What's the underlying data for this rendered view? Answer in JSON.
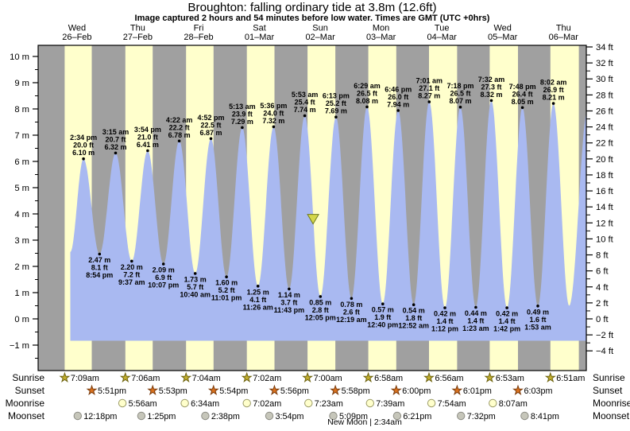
{
  "title": "Broughton: falling  ordinary tide at 3.8m (12.6ft)",
  "subtitle": "Image captured 2 hours and 54 minutes before low water. Times are GMT (UTC +0hrs)",
  "days": [
    {
      "dow": "Wed",
      "date": "26–Feb"
    },
    {
      "dow": "Thu",
      "date": "27–Feb"
    },
    {
      "dow": "Fri",
      "date": "28–Feb"
    },
    {
      "dow": "Sat",
      "date": "01–Mar"
    },
    {
      "dow": "Sun",
      "date": "02–Mar"
    },
    {
      "dow": "Mon",
      "date": "03–Mar"
    },
    {
      "dow": "Tue",
      "date": "04–Mar"
    },
    {
      "dow": "Wed",
      "date": "05–Mar"
    },
    {
      "dow": "Thu",
      "date": "06–Mar"
    }
  ],
  "chart_data": {
    "type": "area",
    "title": "Broughton: falling  ordinary tide at 3.8m (12.6ft)",
    "categories": [
      "Wed 26–Feb",
      "Thu 27–Feb",
      "Fri 28–Feb",
      "Sat 01–Mar",
      "Sun 02–Mar",
      "Mon 03–Mar",
      "Tue 04–Mar",
      "Wed 05–Mar",
      "Thu 06–Mar"
    ],
    "ylabel_left": "m",
    "ylabel_right": "ft",
    "ylim_m": [
      -1.95,
      10.5
    ],
    "grid": false,
    "left_ticks": [
      {
        "v": 10,
        "t": "10 m"
      },
      {
        "v": 9,
        "t": "9 m"
      },
      {
        "v": 8,
        "t": "8 m"
      },
      {
        "v": 7,
        "t": "7 m"
      },
      {
        "v": 6,
        "t": "6 m"
      },
      {
        "v": 5,
        "t": "5 m"
      },
      {
        "v": 4,
        "t": "4 m"
      },
      {
        "v": 3,
        "t": "3 m"
      },
      {
        "v": 2,
        "t": "2 m"
      },
      {
        "v": 1,
        "t": "1 m"
      },
      {
        "v": 0,
        "t": "0 m"
      },
      {
        "v": -1,
        "t": "−1 m"
      }
    ],
    "right_ticks": [
      {
        "v": 34,
        "t": "34 ft"
      },
      {
        "v": 32,
        "t": "32 ft"
      },
      {
        "v": 30,
        "t": "30 ft"
      },
      {
        "v": 28,
        "t": "28 ft"
      },
      {
        "v": 26,
        "t": "26 ft"
      },
      {
        "v": 24,
        "t": "24 ft"
      },
      {
        "v": 22,
        "t": "22 ft"
      },
      {
        "v": 20,
        "t": "20 ft"
      },
      {
        "v": 18,
        "t": "18 ft"
      },
      {
        "v": 16,
        "t": "16 ft"
      },
      {
        "v": 14,
        "t": "14 ft"
      },
      {
        "v": 12,
        "t": "12 ft"
      },
      {
        "v": 10,
        "t": "10 ft"
      },
      {
        "v": 8,
        "t": "8 ft"
      },
      {
        "v": 6,
        "t": "6 ft"
      },
      {
        "v": 4,
        "t": "4 ft"
      },
      {
        "v": 2,
        "t": "2 ft"
      },
      {
        "v": 0,
        "t": "0 ft"
      },
      {
        "v": -2,
        "t": "−2 ft"
      },
      {
        "v": -4,
        "t": "−4 ft"
      }
    ],
    "tide_events": [
      {
        "day": 0,
        "type": "high",
        "time": "2:34 pm",
        "ft": 20.0,
        "m": 6.1
      },
      {
        "day": 0,
        "type": "low",
        "time": "8:54 pm",
        "ft": 8.1,
        "m": 2.47
      },
      {
        "day": 1,
        "type": "high",
        "time": "3:15 am",
        "ft": 20.7,
        "m": 6.32
      },
      {
        "day": 1,
        "type": "low",
        "time": "9:37 am",
        "ft": 7.2,
        "m": 2.2
      },
      {
        "day": 1,
        "type": "high",
        "time": "3:54 pm",
        "ft": 21.0,
        "m": 6.41
      },
      {
        "day": 1,
        "type": "low",
        "time": "10:07 pm",
        "ft": 6.9,
        "m": 2.09
      },
      {
        "day": 2,
        "type": "high",
        "time": "4:22 am",
        "ft": 22.2,
        "m": 6.78
      },
      {
        "day": 2,
        "type": "low",
        "time": "10:40 am",
        "ft": 5.7,
        "m": 1.73
      },
      {
        "day": 2,
        "type": "high",
        "time": "4:52 pm",
        "ft": 22.5,
        "m": 6.87
      },
      {
        "day": 2,
        "type": "low",
        "time": "11:01 pm",
        "ft": 5.2,
        "m": 1.6
      },
      {
        "day": 3,
        "type": "high",
        "time": "5:13 am",
        "ft": 23.9,
        "m": 7.29
      },
      {
        "day": 3,
        "type": "low",
        "time": "11:26 am",
        "ft": 4.1,
        "m": 1.25
      },
      {
        "day": 3,
        "type": "high",
        "time": "5:36 pm",
        "ft": 24.0,
        "m": 7.32
      },
      {
        "day": 3,
        "type": "low",
        "time": "11:43 pm",
        "ft": 3.7,
        "m": 1.14
      },
      {
        "day": 4,
        "type": "high",
        "time": "5:53 am",
        "ft": 25.4,
        "m": 7.74
      },
      {
        "day": 4,
        "type": "low",
        "time": "12:05 pm",
        "ft": 2.8,
        "m": 0.85
      },
      {
        "day": 4,
        "type": "high",
        "time": "6:13 pm",
        "ft": 25.2,
        "m": 7.69
      },
      {
        "day": 5,
        "type": "low",
        "time": "12:19 am",
        "ft": 2.6,
        "m": 0.78
      },
      {
        "day": 5,
        "type": "high",
        "time": "6:29 am",
        "ft": 26.5,
        "m": 8.08
      },
      {
        "day": 5,
        "type": "low",
        "time": "12:40 pm",
        "ft": 1.9,
        "m": 0.57
      },
      {
        "day": 5,
        "type": "high",
        "time": "6:46 pm",
        "ft": 26.0,
        "m": 7.94
      },
      {
        "day": 6,
        "type": "low",
        "time": "12:52 am",
        "ft": 1.8,
        "m": 0.54
      },
      {
        "day": 6,
        "type": "high",
        "time": "7:01 am",
        "ft": 27.1,
        "m": 8.27
      },
      {
        "day": 6,
        "type": "low",
        "time": "1:12 pm",
        "ft": 1.4,
        "m": 0.42
      },
      {
        "day": 6,
        "type": "high",
        "time": "7:18 pm",
        "ft": 26.5,
        "m": 8.07
      },
      {
        "day": 7,
        "type": "low",
        "time": "1:23 am",
        "ft": 1.4,
        "m": 0.44
      },
      {
        "day": 7,
        "type": "high",
        "time": "7:32 am",
        "ft": 27.3,
        "m": 8.32
      },
      {
        "day": 7,
        "type": "low",
        "time": "1:42 pm",
        "ft": 1.4,
        "m": 0.42
      },
      {
        "day": 7,
        "type": "high",
        "time": "7:48 pm",
        "ft": 26.4,
        "m": 8.05
      },
      {
        "day": 8,
        "type": "low",
        "time": "1:53 am",
        "ft": 1.6,
        "m": 0.49
      },
      {
        "day": 8,
        "type": "high",
        "time": "8:02 am",
        "ft": 26.9,
        "m": 8.21
      }
    ],
    "current_tide_marker": {
      "day": 4,
      "time": "9:11 am",
      "m": 3.8
    }
  },
  "astro": {
    "rows": [
      {
        "label": "Sunrise",
        "icon": "sunrise-star-icon",
        "entries": [
          {
            "day": 0,
            "time": "7:09am"
          },
          {
            "day": 1,
            "time": "7:06am"
          },
          {
            "day": 2,
            "time": "7:04am"
          },
          {
            "day": 3,
            "time": "7:02am"
          },
          {
            "day": 4,
            "time": "7:00am"
          },
          {
            "day": 5,
            "time": "6:58am"
          },
          {
            "day": 6,
            "time": "6:56am"
          },
          {
            "day": 7,
            "time": "6:53am"
          },
          {
            "day": 8,
            "time": "6:51am"
          }
        ]
      },
      {
        "label": "Sunset",
        "icon": "sunset-star-icon",
        "entries": [
          {
            "day": 0,
            "time": "5:51pm"
          },
          {
            "day": 1,
            "time": "5:53pm"
          },
          {
            "day": 2,
            "time": "5:54pm"
          },
          {
            "day": 3,
            "time": "5:56pm"
          },
          {
            "day": 4,
            "time": "5:58pm"
          },
          {
            "day": 5,
            "time": "6:00pm"
          },
          {
            "day": 6,
            "time": "6:01pm"
          },
          {
            "day": 7,
            "time": "6:03pm"
          }
        ]
      },
      {
        "label": "Moonrise",
        "icon": "moonrise-circle-icon",
        "entries": [
          {
            "day": 1,
            "time": "5:56am"
          },
          {
            "day": 2,
            "time": "6:34am"
          },
          {
            "day": 3,
            "time": "7:02am"
          },
          {
            "day": 4,
            "time": "7:23am"
          },
          {
            "day": 5,
            "time": "7:39am"
          },
          {
            "day": 6,
            "time": "7:54am"
          },
          {
            "day": 7,
            "time": "8:07am"
          }
        ]
      },
      {
        "label": "Moonset",
        "icon": "moonset-circle-icon",
        "entries": [
          {
            "day": 0,
            "time": "12:18pm"
          },
          {
            "day": 1,
            "time": "1:25pm"
          },
          {
            "day": 2,
            "time": "2:38pm"
          },
          {
            "day": 3,
            "time": "3:54pm"
          },
          {
            "day": 4,
            "time": "5:09pm"
          },
          {
            "day": 5,
            "time": "6:21pm"
          },
          {
            "day": 6,
            "time": "7:32pm"
          },
          {
            "day": 7,
            "time": "8:41pm"
          }
        ]
      }
    ],
    "new_moon": "New Moon | 2:34am"
  },
  "colors": {
    "day_label_red": "#ee2222",
    "night_gray": "#a0a0a0",
    "daylight_yellow": "#ffffcc",
    "tide_blue": "#a9b9f1",
    "sunrise_star": "#c2ae2f",
    "sunset_star": "#d9711e",
    "moonrise_fill": "#ffffcc",
    "moonset_fill": "#c6c6ba",
    "marker_yellow": "#d4d74a"
  }
}
